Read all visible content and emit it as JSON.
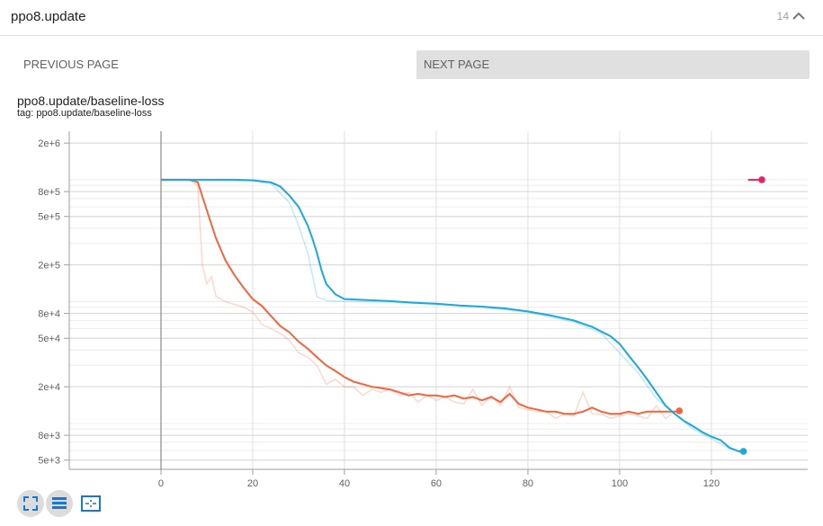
{
  "header": {
    "title": "ppo8.update",
    "count": "14"
  },
  "pager": {
    "previous": "PREVIOUS PAGE",
    "next": "NEXT PAGE"
  },
  "card": {
    "title": "ppo8.update/baseline-loss",
    "tag": "tag: ppo8.update/baseline-loss"
  },
  "colors": {
    "orange": "#f4643c",
    "blue": "#1ba8dc",
    "pink": "#e8216a"
  },
  "chart_data": {
    "type": "line",
    "xscale": "linear",
    "yscale": "log",
    "xlim": [
      -20,
      141
    ],
    "ylim": [
      4200,
      2500000
    ],
    "x_ticks": [
      0,
      20,
      40,
      60,
      80,
      100,
      120
    ],
    "y_ticks": [
      {
        "value": 5000,
        "label": "5e+3"
      },
      {
        "value": 8000,
        "label": "8e+3"
      },
      {
        "value": 20000,
        "label": "2e+4"
      },
      {
        "value": 50000,
        "label": "5e+4"
      },
      {
        "value": 80000,
        "label": "8e+4"
      },
      {
        "value": 200000,
        "label": "2e+5"
      },
      {
        "value": 500000,
        "label": "5e+5"
      },
      {
        "value": 800000,
        "label": "8e+5"
      },
      {
        "value": 2000000,
        "label": "2e+6"
      }
    ],
    "grid": true,
    "series": [
      {
        "color": "#f4643c",
        "smoothed": [
          [
            0,
            1000000
          ],
          [
            6,
            1000000
          ],
          [
            8,
            960000
          ],
          [
            10,
            560000
          ],
          [
            12,
            330000
          ],
          [
            14,
            220000
          ],
          [
            16,
            165000
          ],
          [
            18,
            130000
          ],
          [
            20,
            105000
          ],
          [
            22,
            92000
          ],
          [
            24,
            76000
          ],
          [
            26,
            63000
          ],
          [
            28,
            56000
          ],
          [
            30,
            47000
          ],
          [
            32,
            41000
          ],
          [
            34,
            35000
          ],
          [
            36,
            30000
          ],
          [
            38,
            27000
          ],
          [
            40,
            24000
          ],
          [
            42,
            22000
          ],
          [
            44,
            21000
          ],
          [
            46,
            20000
          ],
          [
            48,
            19500
          ],
          [
            50,
            19000
          ],
          [
            52,
            18000
          ],
          [
            54,
            17000
          ],
          [
            56,
            17500
          ],
          [
            58,
            17000
          ],
          [
            60,
            17000
          ],
          [
            62,
            16500
          ],
          [
            64,
            17000
          ],
          [
            66,
            16000
          ],
          [
            68,
            16500
          ],
          [
            70,
            15500
          ],
          [
            72,
            16500
          ],
          [
            74,
            15000
          ],
          [
            76,
            17500
          ],
          [
            78,
            14500
          ],
          [
            80,
            13500
          ],
          [
            82,
            13000
          ],
          [
            84,
            12500
          ],
          [
            86,
            12500
          ],
          [
            88,
            12000
          ],
          [
            90,
            12000
          ],
          [
            92,
            12500
          ],
          [
            94,
            13500
          ],
          [
            96,
            12500
          ],
          [
            98,
            12000
          ],
          [
            100,
            12000
          ],
          [
            102,
            12500
          ],
          [
            104,
            12000
          ],
          [
            106,
            12500
          ],
          [
            108,
            12500
          ],
          [
            110,
            12500
          ],
          [
            112,
            12500
          ],
          [
            113,
            12700
          ]
        ],
        "raw": [
          [
            0,
            1000000
          ],
          [
            6,
            1000000
          ],
          [
            8,
            900000
          ],
          [
            9,
            200000
          ],
          [
            10,
            140000
          ],
          [
            11,
            160000
          ],
          [
            12,
            110000
          ],
          [
            14,
            100000
          ],
          [
            16,
            95000
          ],
          [
            18,
            90000
          ],
          [
            20,
            82000
          ],
          [
            22,
            65000
          ],
          [
            24,
            60000
          ],
          [
            26,
            55000
          ],
          [
            28,
            48000
          ],
          [
            30,
            38000
          ],
          [
            32,
            35000
          ],
          [
            34,
            30000
          ],
          [
            36,
            21000
          ],
          [
            38,
            23000
          ],
          [
            40,
            20000
          ],
          [
            42,
            20000
          ],
          [
            44,
            17000
          ],
          [
            46,
            19000
          ],
          [
            48,
            18000
          ],
          [
            50,
            19000
          ],
          [
            52,
            17000
          ],
          [
            54,
            18000
          ],
          [
            56,
            15000
          ],
          [
            58,
            17000
          ],
          [
            60,
            15500
          ],
          [
            62,
            16500
          ],
          [
            64,
            15000
          ],
          [
            66,
            14500
          ],
          [
            68,
            19000
          ],
          [
            70,
            14000
          ],
          [
            72,
            17000
          ],
          [
            74,
            14000
          ],
          [
            76,
            20000
          ],
          [
            78,
            13500
          ],
          [
            80,
            13000
          ],
          [
            82,
            12500
          ],
          [
            84,
            12500
          ],
          [
            86,
            11000
          ],
          [
            88,
            12000
          ],
          [
            90,
            11500
          ],
          [
            92,
            18000
          ],
          [
            94,
            12000
          ],
          [
            96,
            12000
          ],
          [
            98,
            11000
          ],
          [
            100,
            11500
          ],
          [
            102,
            12000
          ],
          [
            104,
            11500
          ],
          [
            106,
            11000
          ],
          [
            108,
            14000
          ],
          [
            110,
            11000
          ],
          [
            112,
            12500
          ],
          [
            113,
            12500
          ]
        ]
      },
      {
        "color": "#1ba8dc",
        "smoothed": [
          [
            0,
            1000000
          ],
          [
            10,
            1000000
          ],
          [
            16,
            1000000
          ],
          [
            20,
            990000
          ],
          [
            24,
            950000
          ],
          [
            26,
            880000
          ],
          [
            28,
            740000
          ],
          [
            30,
            600000
          ],
          [
            32,
            420000
          ],
          [
            33,
            330000
          ],
          [
            34,
            250000
          ],
          [
            35,
            180000
          ],
          [
            36,
            140000
          ],
          [
            38,
            115000
          ],
          [
            40,
            105000
          ],
          [
            45,
            103000
          ],
          [
            50,
            101000
          ],
          [
            55,
            98000
          ],
          [
            60,
            96000
          ],
          [
            65,
            93000
          ],
          [
            70,
            91000
          ],
          [
            75,
            88000
          ],
          [
            80,
            83000
          ],
          [
            85,
            77000
          ],
          [
            90,
            70000
          ],
          [
            94,
            62000
          ],
          [
            98,
            52000
          ],
          [
            100,
            45000
          ],
          [
            102,
            36000
          ],
          [
            104,
            29000
          ],
          [
            106,
            23000
          ],
          [
            108,
            18000
          ],
          [
            110,
            14000
          ],
          [
            112,
            12000
          ],
          [
            114,
            10500
          ],
          [
            116,
            9500
          ],
          [
            118,
            8500
          ],
          [
            120,
            7800
          ],
          [
            122,
            7300
          ],
          [
            124,
            6300
          ],
          [
            126,
            5900
          ],
          [
            127,
            5900
          ]
        ],
        "raw": [
          [
            0,
            1000000
          ],
          [
            10,
            1000000
          ],
          [
            20,
            980000
          ],
          [
            24,
            930000
          ],
          [
            28,
            650000
          ],
          [
            30,
            420000
          ],
          [
            32,
            250000
          ],
          [
            34,
            110000
          ],
          [
            36,
            102000
          ],
          [
            40,
            100000
          ],
          [
            50,
            99000
          ],
          [
            60,
            95000
          ],
          [
            70,
            90000
          ],
          [
            80,
            82000
          ],
          [
            90,
            68000
          ],
          [
            96,
            55000
          ],
          [
            100,
            38000
          ],
          [
            104,
            26000
          ],
          [
            108,
            16000
          ],
          [
            112,
            12000
          ],
          [
            116,
            9000
          ],
          [
            120,
            7500
          ],
          [
            124,
            6200
          ],
          [
            127,
            5900
          ]
        ]
      },
      {
        "color": "#e8216a",
        "smoothed": [
          [
            128,
            1000000
          ],
          [
            131,
            1000000
          ]
        ],
        "raw": []
      }
    ]
  }
}
